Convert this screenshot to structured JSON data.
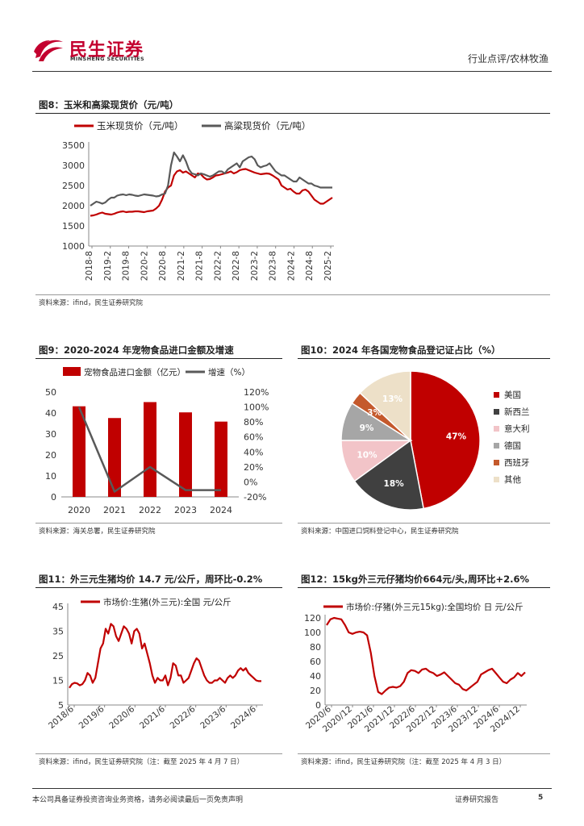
{
  "header": {
    "logo_cn": "民生证券",
    "logo_en": "MINSHENG SECURITIES",
    "category": "行业点评/农林牧渔"
  },
  "colors": {
    "red": "#c00000",
    "gray": "#595959",
    "brand": "#c3002f"
  },
  "fig8": {
    "title": "图8：玉米和高粱现货价（元/吨）",
    "source": "资料来源：ifind，民生证券研究院",
    "chart_data": {
      "type": "line",
      "x_labels": [
        "2018-8",
        "2019-2",
        "2019-8",
        "2020-2",
        "2020-8",
        "2021-2",
        "2021-8",
        "2022-2",
        "2022-8",
        "2023-2",
        "2023-8",
        "2024-2",
        "2024-8",
        "2025-2"
      ],
      "y_ticks": [
        "3500",
        "3000",
        "2500",
        "2000",
        "1500",
        "1000"
      ],
      "ylim": [
        1000,
        3500
      ],
      "series": [
        {
          "name": "玉米现货价（元/吨）",
          "color": "#c00000",
          "values": [
            1750,
            1760,
            1780,
            1810,
            1830,
            1800,
            1790,
            1780,
            1800,
            1830,
            1850,
            1860,
            1840,
            1850,
            1850,
            1860,
            1860,
            1850,
            1840,
            1860,
            1870,
            1880,
            1930,
            2000,
            2150,
            2350,
            2450,
            2500,
            2750,
            2850,
            2880,
            2820,
            2850,
            2800,
            2750,
            2700,
            2800,
            2780,
            2700,
            2650,
            2660,
            2700,
            2750,
            2760,
            2780,
            2800,
            2820,
            2850,
            2800,
            2830,
            2880,
            2900,
            2910,
            2880,
            2850,
            2820,
            2800,
            2780,
            2790,
            2800,
            2790,
            2750,
            2700,
            2650,
            2500,
            2450,
            2400,
            2420,
            2350,
            2300,
            2300,
            2380,
            2400,
            2350,
            2250,
            2150,
            2100,
            2050,
            2050,
            2100,
            2150,
            2200
          ]
        },
        {
          "name": "高粱现货价（元/吨）",
          "color": "#595959",
          "values": [
            2000,
            2050,
            2100,
            2080,
            2050,
            2080,
            2150,
            2200,
            2200,
            2250,
            2270,
            2280,
            2260,
            2280,
            2270,
            2250,
            2240,
            2260,
            2280,
            2270,
            2260,
            2250,
            2230,
            2240,
            2280,
            2300,
            2500,
            3000,
            3320,
            3220,
            3100,
            3250,
            3100,
            2900,
            2800,
            2780,
            2750,
            2800,
            2780,
            2750,
            2720,
            2750,
            2800,
            2850,
            2850,
            2800,
            2900,
            2950,
            3000,
            3050,
            2950,
            3100,
            3150,
            3200,
            3220,
            3150,
            3000,
            2950,
            2980,
            3000,
            3050,
            2950,
            2850,
            2800,
            2750,
            2750,
            2700,
            2650,
            2600,
            2600,
            2700,
            2650,
            2600,
            2550,
            2550,
            2500,
            2480,
            2450,
            2450,
            2450,
            2450,
            2450
          ]
        }
      ]
    }
  },
  "fig9": {
    "title": "图9：2020-2024 年宠物食品进口金额及增速",
    "source": "资料来源：海关总署，民生证券研究院",
    "chart_data": {
      "type": "bar",
      "categories": [
        "2020",
        "2021",
        "2022",
        "2023",
        "2024"
      ],
      "series": [
        {
          "name": "宠物食品进口金额（亿元）",
          "type": "bar",
          "axis": "left",
          "color": "#c00000",
          "values": [
            43.2,
            37.6,
            45.2,
            40.3,
            35.9
          ]
        },
        {
          "name": "增速（%）",
          "type": "line",
          "axis": "right",
          "color": "#595959",
          "values": [
            100,
            -13,
            20,
            -11,
            -11
          ]
        }
      ],
      "y_ticks": [
        "50",
        "40",
        "30",
        "20",
        "10",
        "0"
      ],
      "y2_ticks": [
        "120%",
        "100%",
        "80%",
        "60%",
        "40%",
        "20%",
        "0%",
        "-20%"
      ],
      "ylim": [
        0,
        50
      ],
      "y2lim": [
        -20,
        120
      ]
    }
  },
  "fig10": {
    "title": "图10：2024 年各国宠物食品登记证占比（%）",
    "source": "资料来源：中国进口饲料登记中心，民生证券研究院",
    "chart_data": {
      "type": "pie",
      "slices": [
        {
          "label": "美国",
          "value": 47,
          "text": "47%",
          "color": "#c00000"
        },
        {
          "label": "新西兰",
          "value": 18,
          "text": "18%",
          "color": "#404040"
        },
        {
          "label": "意大利",
          "value": 10,
          "text": "10%",
          "color": "#f2c4c8"
        },
        {
          "label": "德国",
          "value": 9,
          "text": "9%",
          "color": "#a6a6a6"
        },
        {
          "label": "西班牙",
          "value": 3,
          "text": "3%",
          "color": "#c4592c"
        },
        {
          "label": "其他",
          "value": 13,
          "text": "13%",
          "color": "#ede0c8"
        }
      ]
    }
  },
  "fig11": {
    "title": "图11：外三元生猪均价 14.7 元/公斤，周环比-0.2%",
    "source": "资料来源：ifind，民生证券研究院（注：截至 2025 年 4 月 7 日）",
    "chart_data": {
      "type": "line",
      "x_labels": [
        "2018/6",
        "2019/6",
        "2020/6",
        "2021/6",
        "2022/6",
        "2023/6",
        "2024/6"
      ],
      "y_ticks": [
        "45",
        "35",
        "25",
        "15",
        "5"
      ],
      "ylim": [
        5,
        45
      ],
      "series": [
        {
          "name": "市场价:生猪(外三元):全国 元/公斤",
          "color": "#c00000",
          "values": [
            12,
            13.5,
            14,
            13.8,
            13,
            13.5,
            15,
            18,
            17,
            14,
            16,
            22,
            28,
            30,
            36,
            34,
            38,
            37,
            33,
            31,
            34,
            37,
            36,
            34,
            30,
            35,
            36,
            34,
            28,
            30,
            26,
            22,
            17,
            14,
            16,
            15,
            15,
            17,
            13,
            16,
            22,
            21,
            17,
            17,
            14,
            15,
            16,
            19,
            22,
            24,
            23,
            20,
            17,
            15,
            14,
            14,
            15,
            15,
            16,
            15,
            14,
            16,
            17,
            16,
            17,
            19,
            20,
            19,
            20,
            18,
            17,
            16,
            15,
            14.7,
            14.7
          ]
        }
      ]
    }
  },
  "fig12": {
    "title": "图12：15kg外三元仔猪均价664元/头,周环比+2.6%",
    "source": "资料来源：ifind，民生证券研究院（注：截至 2025 年 4 月 3 日）",
    "chart_data": {
      "type": "line",
      "x_labels": [
        "2020/6",
        "2020/12",
        "2021/6",
        "2021/12",
        "2022/6",
        "2022/12",
        "2023/6",
        "2023/12",
        "2024/6",
        "2024/12"
      ],
      "y_ticks": [
        "120",
        "100",
        "80",
        "60",
        "40",
        "20",
        "0"
      ],
      "ylim": [
        0,
        120
      ],
      "series": [
        {
          "name": "市场价:仔猪(外三元15kg):全国均价 日 元/公斤",
          "color": "#c00000",
          "values": [
            110,
            118,
            120,
            119,
            118,
            110,
            100,
            98,
            100,
            101,
            100,
            96,
            72,
            40,
            18,
            15,
            20,
            24,
            25,
            24,
            26,
            32,
            44,
            48,
            47,
            44,
            49,
            50,
            46,
            44,
            40,
            42,
            45,
            40,
            35,
            30,
            28,
            22,
            20,
            24,
            28,
            32,
            42,
            45,
            48,
            50,
            44,
            38,
            32,
            30,
            35,
            38,
            44,
            40,
            45
          ]
        }
      ]
    }
  },
  "footer": {
    "disclaimer": "本公司具备证券投资咨询业务资格，请务必阅读最后一页免责声明",
    "report_type": "证券研究报告",
    "page": "5"
  }
}
